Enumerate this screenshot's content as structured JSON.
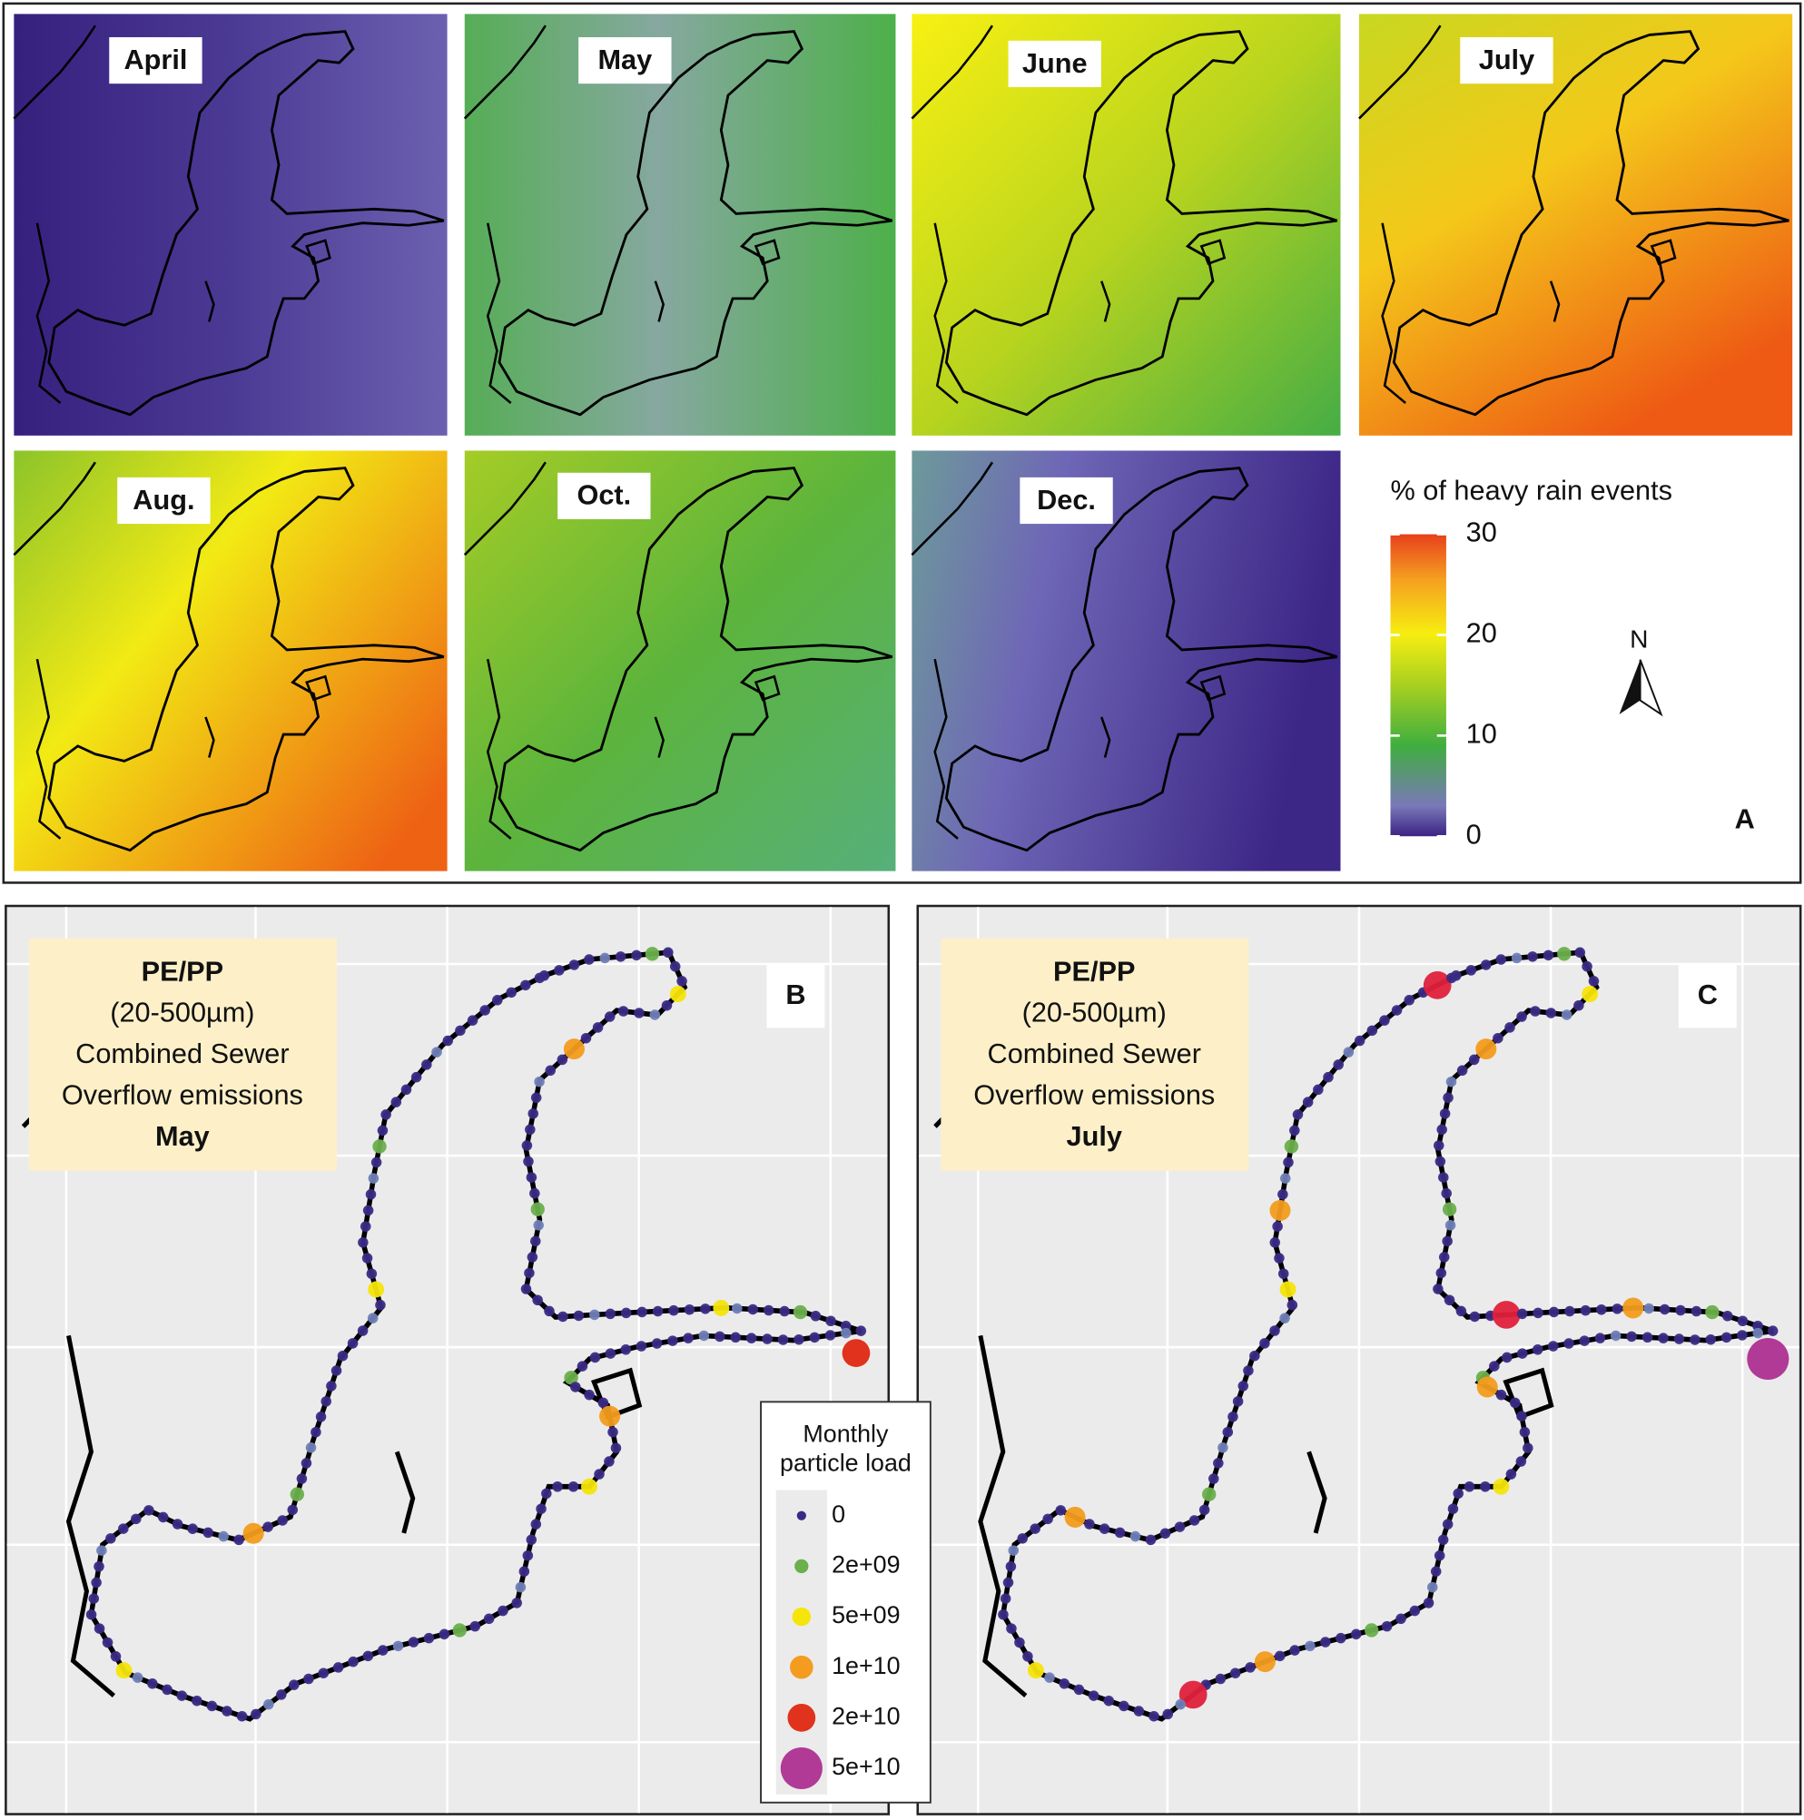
{
  "panel_a": {
    "months": [
      "April",
      "May",
      "June",
      "July",
      "Aug.",
      "Oct.",
      "Dec."
    ],
    "legend_title": "% of heavy rain events",
    "colorbar_ticks": [
      0,
      10,
      20,
      30
    ],
    "north": "N",
    "label": "A"
  },
  "panel_b": {
    "lines": [
      "PE/PP",
      "(20-500µm)",
      "Combined Sewer",
      "Overflow emissions",
      "May"
    ],
    "label": "B"
  },
  "panel_c": {
    "lines": [
      "PE/PP",
      "(20-500µm)",
      "Combined Sewer",
      "Overflow emissions",
      "July"
    ],
    "label": "C"
  },
  "legend": {
    "title": [
      "Monthly",
      "particle load"
    ],
    "entries": [
      "0",
      "2e+09",
      "5e+09",
      "1e+10",
      "2e+10",
      "5e+10"
    ]
  }
}
